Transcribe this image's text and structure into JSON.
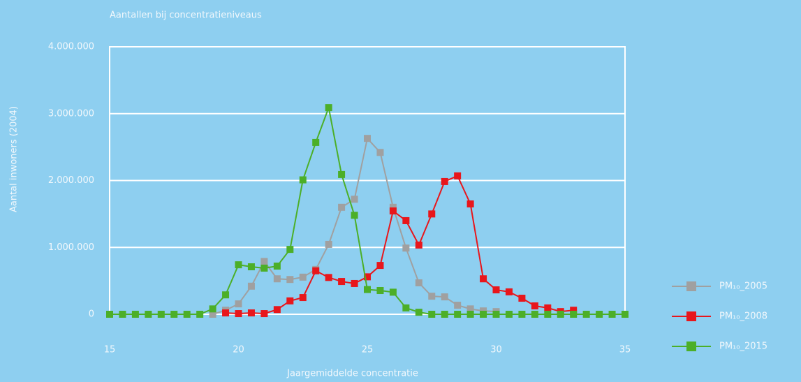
{
  "chart_data": {
    "type": "line",
    "title": "Aantallen bij concentratieniveaus",
    "xlabel": "Jaargemiddelde concentratie",
    "ylabel": "Aantal inwoners (2004)",
    "x": [
      15,
      15.5,
      16,
      16.5,
      17,
      17.5,
      18,
      18.5,
      19,
      19.5,
      20,
      20.5,
      21,
      21.5,
      22,
      22.5,
      23,
      23.5,
      24,
      24.5,
      25,
      25.5,
      26,
      26.5,
      27,
      27.5,
      28,
      28.5,
      29,
      29.5,
      30,
      30.5,
      31,
      31.5,
      32,
      32.5,
      33,
      33.5,
      34,
      34.5,
      35
    ],
    "series": [
      {
        "name": "PM₁₀_2005",
        "color": "#a0a0a0",
        "values": [
          null,
          null,
          null,
          null,
          null,
          null,
          null,
          null,
          0,
          60000,
          155000,
          420000,
          790000,
          530000,
          520000,
          555000,
          670000,
          1045000,
          1600000,
          1720000,
          2630000,
          2420000,
          1600000,
          990000,
          470000,
          270000,
          260000,
          135000,
          80000,
          50000,
          40000,
          null,
          null,
          null,
          null,
          null,
          null,
          null,
          null,
          null,
          null
        ]
      },
      {
        "name": "PM₁₀_2008",
        "color": "#e8161b",
        "values": [
          null,
          null,
          null,
          null,
          null,
          null,
          null,
          null,
          null,
          20000,
          10000,
          20000,
          10000,
          70000,
          200000,
          250000,
          650000,
          550000,
          490000,
          460000,
          560000,
          730000,
          1545000,
          1400000,
          1035000,
          1500000,
          1985000,
          2070000,
          1650000,
          530000,
          365000,
          335000,
          240000,
          125000,
          95000,
          40000,
          60000,
          null,
          null,
          null,
          null
        ]
      },
      {
        "name": "PM₁₀_2015",
        "color": "#4caf28",
        "values": [
          0,
          0,
          0,
          0,
          0,
          0,
          0,
          0,
          80000,
          290000,
          740000,
          710000,
          690000,
          720000,
          970000,
          2010000,
          2570000,
          3090000,
          2090000,
          1480000,
          370000,
          355000,
          330000,
          95000,
          30000,
          0,
          0,
          0,
          0,
          0,
          0,
          0,
          0,
          0,
          0,
          0,
          0,
          0,
          0,
          0,
          0
        ]
      }
    ],
    "xlim": [
      15,
      35
    ],
    "xticks": [
      15,
      20,
      25,
      30,
      35
    ],
    "ylim": [
      0,
      4000000
    ],
    "yticks": [
      0,
      {
        "value": 1000000,
        "label": "1.000.000"
      },
      {
        "value": 2000000,
        "label": "2.000.000"
      },
      {
        "value": 3000000,
        "label": "3.000.000"
      },
      {
        "value": 4000000,
        "label": "4.000.000"
      }
    ],
    "grid": true,
    "legend": "right"
  }
}
